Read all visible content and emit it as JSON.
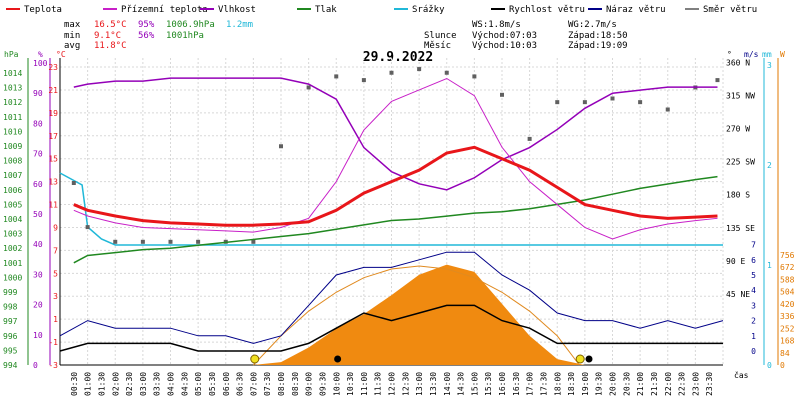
{
  "chart_data": {
    "type": "line",
    "title": "29.9.2022",
    "legend": [
      {
        "name": "Teplota",
        "color": "#e8161a"
      },
      {
        "name": "Přízemní teplota",
        "color": "#c820c8"
      },
      {
        "name": "Vlhkost",
        "color": "#9400b8"
      },
      {
        "name": "Tlak",
        "color": "#208820"
      },
      {
        "name": "Srážky",
        "color": "#20b8d8"
      },
      {
        "name": "Rychlost větru",
        "color": "#000000"
      },
      {
        "name": "Náraz větru",
        "color": "#000088"
      },
      {
        "name": "Směr větru",
        "color": "#808080"
      }
    ],
    "stats": {
      "max_label": "max",
      "max_temp": "16.5°C",
      "max_hum": "95%",
      "max_press": "1006.9hPa",
      "max_rain": "1.2mm",
      "min_label": "min",
      "min_temp": "9.1°C",
      "min_hum": "56%",
      "min_press": "1001hPa",
      "avg_label": "avg",
      "avg_temp": "11.8°C",
      "ws": "WS:1.8m/s",
      "wg": "WG:2.7m/s",
      "sun_label": "Slunce",
      "sunrise": "Východ:07:03",
      "sunset": "Západ:18:50",
      "moon_label": "Měsíc",
      "moonrise": "Východ:10:03",
      "moonset": "Západ:19:09"
    },
    "axes": {
      "hpa_unit": "hPa",
      "pct_unit": "%",
      "c_unit": "°C",
      "deg_unit": "°",
      "ms_unit": "m/s",
      "mm_unit": "mm",
      "w_unit": "W",
      "x_label": "čas",
      "hpa_ticks": [
        "1014",
        "1013",
        "1012",
        "1011",
        "1010",
        "1009",
        "1008",
        "1007",
        "1006",
        "1005",
        "1004",
        "1003",
        "1002",
        "1001",
        "1000",
        "999",
        "998",
        "997",
        "996",
        "995",
        "994"
      ],
      "pct_ticks": [
        "100",
        "90",
        "80",
        "70",
        "60",
        "50",
        "40",
        "30",
        "20",
        "10",
        "0"
      ],
      "c_ticks": [
        "23",
        "21",
        "19",
        "17",
        "15",
        "13",
        "11",
        "9",
        "7",
        "5",
        "3",
        "1",
        "-1",
        "-3"
      ],
      "ms_low_ticks": [
        "0",
        "1",
        "2",
        "3",
        "4",
        "5",
        "6",
        "7"
      ],
      "dir_ticks": [
        "360 N",
        "315 NW",
        "270 W",
        "225 SW",
        "180 S",
        "135 SE",
        "90 E",
        "45 NE"
      ],
      "mm_ticks": [
        "3",
        "2",
        "1",
        "0"
      ],
      "w_ticks": [
        "756",
        "672",
        "588",
        "504",
        "420",
        "336",
        "252",
        "168",
        "84",
        "0"
      ],
      "x_ticks": [
        "00:30",
        "01:00",
        "01:30",
        "02:00",
        "02:30",
        "03:00",
        "03:30",
        "04:00",
        "04:30",
        "05:00",
        "05:30",
        "06:00",
        "06:30",
        "07:00",
        "07:30",
        "08:00",
        "08:30",
        "09:00",
        "09:30",
        "10:00",
        "10:30",
        "11:00",
        "11:30",
        "12:00",
        "12:30",
        "13:00",
        "13:30",
        "14:00",
        "14:30",
        "15:00",
        "15:30",
        "16:00",
        "16:30",
        "17:00",
        "17:30",
        "18:00",
        "18:30",
        "19:00",
        "19:30",
        "20:00",
        "20:30",
        "21:00",
        "21:30",
        "22:00",
        "22:30",
        "23:00",
        "23:30"
      ]
    },
    "series": {
      "temperature": {
        "x": [
          0.5,
          1,
          2,
          3,
          4,
          5,
          6,
          7,
          8,
          9,
          10,
          11,
          12,
          13,
          14,
          15,
          16,
          17,
          18,
          19,
          20,
          21,
          22,
          23,
          23.8
        ],
        "y": [
          11.0,
          10.5,
          10.0,
          9.6,
          9.4,
          9.3,
          9.2,
          9.2,
          9.3,
          9.5,
          10.5,
          12.0,
          13.0,
          14.0,
          15.5,
          16.0,
          15.0,
          14.0,
          12.5,
          11.0,
          10.5,
          10.0,
          9.8,
          9.9,
          10.0
        ]
      },
      "ground_temperature": {
        "x": [
          0.5,
          1,
          2,
          3,
          4,
          5,
          6,
          7,
          8,
          9,
          10,
          11,
          12,
          13,
          14,
          15,
          16,
          17,
          18,
          19,
          20,
          21,
          22,
          23,
          23.8
        ],
        "y": [
          10.5,
          10.0,
          9.4,
          9.0,
          8.9,
          8.8,
          8.7,
          8.6,
          9.0,
          9.8,
          13.0,
          17.5,
          20.0,
          21.0,
          22.0,
          20.5,
          16.0,
          13.0,
          11.0,
          9.0,
          8.0,
          8.8,
          9.3,
          9.6,
          9.8
        ]
      },
      "humidity": {
        "x": [
          0.5,
          1,
          2,
          3,
          4,
          5,
          6,
          7,
          8,
          9,
          10,
          11,
          12,
          13,
          14,
          15,
          16,
          17,
          18,
          19,
          20,
          21,
          22,
          23,
          23.8
        ],
        "y": [
          92,
          93,
          94,
          94,
          95,
          95,
          95,
          95,
          95,
          93,
          88,
          72,
          64,
          60,
          58,
          62,
          68,
          72,
          78,
          85,
          90,
          91,
          92,
          92,
          92
        ]
      },
      "pressure": {
        "x": [
          0.5,
          1,
          2,
          3,
          4,
          5,
          6,
          7,
          8,
          9,
          10,
          11,
          12,
          13,
          14,
          15,
          16,
          17,
          18,
          19,
          20,
          21,
          22,
          23,
          23.8
        ],
        "y": [
          1001.0,
          1001.5,
          1001.7,
          1001.9,
          1002.0,
          1002.2,
          1002.4,
          1002.6,
          1002.8,
          1003.0,
          1003.3,
          1003.6,
          1003.9,
          1004.0,
          1004.2,
          1004.4,
          1004.5,
          1004.7,
          1005.0,
          1005.3,
          1005.7,
          1006.1,
          1006.4,
          1006.7,
          1006.9
        ]
      },
      "precipitation": {
        "x": [
          0,
          0.8,
          1.0,
          1.5,
          2.0,
          24
        ],
        "y": [
          0,
          0.2,
          0.9,
          1.1,
          1.2,
          1.2
        ]
      },
      "wind_speed": {
        "x": [
          0,
          1,
          2,
          3,
          4,
          5,
          6,
          7,
          8,
          9,
          10,
          11,
          12,
          13,
          14,
          15,
          16,
          17,
          18,
          19,
          20,
          21,
          22,
          23,
          24
        ],
        "y": [
          0,
          0.5,
          0.5,
          0.5,
          0.5,
          0,
          0,
          0,
          0,
          0.5,
          1.5,
          2.5,
          2.0,
          2.5,
          3.0,
          3.0,
          2.0,
          1.5,
          0.5,
          0.5,
          0.5,
          0.5,
          0.5,
          0.5,
          0.5
        ]
      },
      "wind_gust": {
        "x": [
          0,
          1,
          2,
          3,
          4,
          5,
          6,
          7,
          8,
          9,
          10,
          11,
          12,
          13,
          14,
          15,
          16,
          17,
          18,
          19,
          20,
          21,
          22,
          23,
          24
        ],
        "y": [
          1.0,
          2.0,
          1.5,
          1.5,
          1.5,
          1.0,
          1.0,
          0.5,
          1.0,
          3.0,
          5.0,
          5.5,
          5.5,
          6.0,
          6.5,
          6.5,
          5.0,
          4.0,
          2.5,
          2.0,
          2.0,
          1.5,
          2.0,
          1.5,
          2.0
        ]
      },
      "wind_direction": {
        "x": [
          0.5,
          1,
          2,
          3,
          4,
          5,
          6,
          7,
          8,
          9,
          10,
          11,
          12,
          13,
          14,
          15,
          16,
          17,
          18,
          19,
          20,
          21,
          22,
          23,
          23.8
        ],
        "y": [
          200,
          140,
          120,
          120,
          120,
          120,
          120,
          120,
          250,
          330,
          345,
          340,
          350,
          355,
          350,
          345,
          320,
          260,
          310,
          310,
          315,
          310,
          300,
          330,
          340
        ]
      },
      "solar_radiation": {
        "x": [
          7,
          8,
          9,
          10,
          11,
          12,
          13,
          14,
          15,
          16,
          17,
          18,
          19
        ],
        "y": [
          0,
          20,
          120,
          250,
          350,
          480,
          620,
          690,
          640,
          420,
          200,
          40,
          0
        ]
      },
      "sun_path": {
        "x": [
          7.0,
          8,
          9,
          10,
          11,
          12,
          13,
          14,
          15,
          16,
          17,
          18,
          18.8
        ],
        "y": [
          0,
          200,
          370,
          500,
          600,
          660,
          680,
          660,
          600,
          500,
          370,
          200,
          0
        ]
      }
    }
  }
}
